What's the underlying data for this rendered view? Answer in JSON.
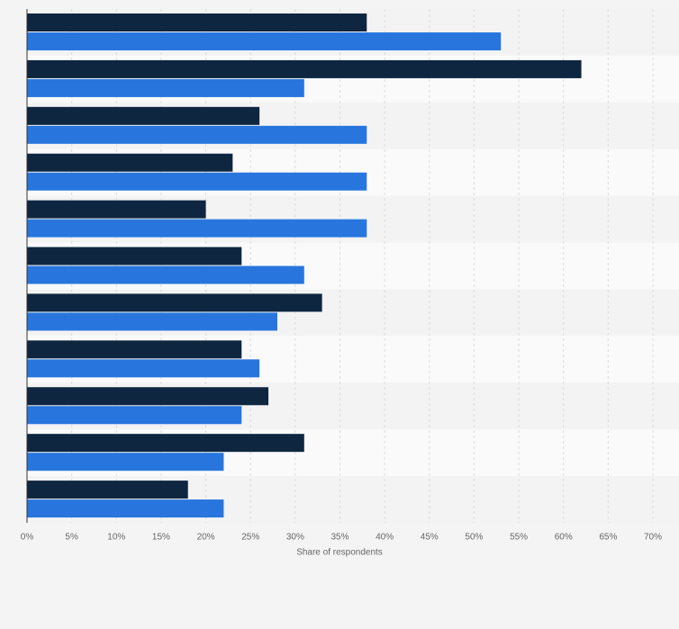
{
  "chart_data": {
    "type": "bar",
    "orientation": "horizontal",
    "x_label": "Share of respondents",
    "categories": [
      null,
      null,
      null,
      null,
      null,
      null,
      null,
      null,
      null,
      null,
      null
    ],
    "series": [
      {
        "color": "#0f2640",
        "values": [
          38,
          62,
          26,
          23,
          20,
          24,
          33,
          24,
          27,
          31,
          18
        ]
      },
      {
        "color": "#2876dd",
        "values": [
          53,
          31,
          38,
          38,
          38,
          31,
          28,
          26,
          24,
          22,
          22
        ]
      }
    ],
    "xlim": [
      0,
      70
    ],
    "xticks": [
      {
        "value": 0,
        "label": "0%"
      },
      {
        "value": 5,
        "label": "5%"
      },
      {
        "value": 10,
        "label": "10%"
      },
      {
        "value": 15,
        "label": "15%"
      },
      {
        "value": 20,
        "label": "20%"
      },
      {
        "value": 25,
        "label": "25%"
      },
      {
        "value": 30,
        "label": "30%"
      },
      {
        "value": 35,
        "label": "35%"
      },
      {
        "value": 40,
        "label": "40%"
      },
      {
        "value": 45,
        "label": "45%"
      },
      {
        "value": 50,
        "label": "50%"
      },
      {
        "value": 55,
        "label": "55%"
      },
      {
        "value": 60,
        "label": "60%"
      },
      {
        "value": 65,
        "label": "65%"
      },
      {
        "value": 70,
        "label": "70%"
      }
    ],
    "grid": true
  }
}
